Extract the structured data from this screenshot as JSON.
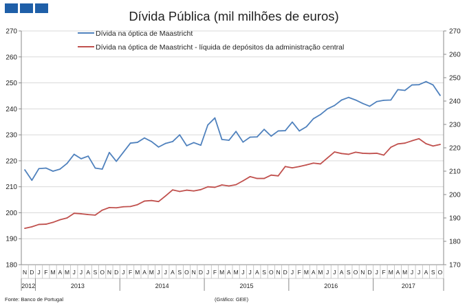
{
  "brand_color": "#1f5fa8",
  "chart_data": {
    "type": "line",
    "title": "Dívida Pública (mil milhões de euros)",
    "ylim": [
      180,
      270
    ],
    "y2lim": [
      170,
      270
    ],
    "yticks": [
      180,
      190,
      200,
      210,
      220,
      230,
      240,
      250,
      260,
      270
    ],
    "y2ticks": [
      170,
      180,
      190,
      200,
      210,
      220,
      230,
      240,
      250,
      260,
      270
    ],
    "months": [
      "N",
      "D",
      "J",
      "F",
      "M",
      "A",
      "M",
      "J",
      "J",
      "A",
      "S",
      "O",
      "N",
      "D",
      "J",
      "F",
      "M",
      "A",
      "M",
      "J",
      "J",
      "A",
      "S",
      "O",
      "N",
      "D",
      "J",
      "F",
      "M",
      "A",
      "M",
      "J",
      "J",
      "A",
      "S",
      "O",
      "N",
      "D",
      "J",
      "F",
      "M",
      "A",
      "M",
      "J",
      "J",
      "A",
      "S",
      "O",
      "N",
      "D",
      "J",
      "F",
      "M",
      "A",
      "M",
      "J",
      "J",
      "A",
      "S",
      "O"
    ],
    "years": [
      {
        "label": "2012",
        "start": 0,
        "count": 2
      },
      {
        "label": "2013",
        "start": 2,
        "count": 12
      },
      {
        "label": "2014",
        "start": 14,
        "count": 12
      },
      {
        "label": "2015",
        "start": 26,
        "count": 12
      },
      {
        "label": "2016",
        "start": 38,
        "count": 12
      },
      {
        "label": "2017",
        "start": 50,
        "count": 10
      }
    ],
    "legend_position": "top",
    "series": [
      {
        "name": "Dívida na óptica de Maastricht",
        "color": "#4f81bd",
        "values": [
          216.5,
          212.5,
          217.0,
          217.2,
          216.0,
          216.8,
          219.0,
          222.5,
          220.8,
          221.8,
          217.2,
          216.8,
          223.2,
          219.8,
          223.3,
          226.8,
          227.1,
          228.8,
          227.4,
          225.3,
          226.7,
          227.4,
          230.0,
          225.8,
          227.0,
          226.0,
          233.8,
          236.5,
          228.2,
          227.9,
          231.3,
          227.2,
          229.1,
          229.2,
          232.1,
          229.5,
          231.5,
          231.6,
          234.9,
          231.5,
          233.1,
          236.2,
          237.8,
          240.0,
          241.3,
          243.4,
          244.4,
          243.4,
          242.1,
          241.0,
          242.8,
          243.3,
          243.4,
          247.4,
          247.1,
          249.2,
          249.3,
          250.5,
          249.2,
          245.2
        ]
      },
      {
        "name": "Dívida na óptica de Maastricht - líquida de depósitos da administração central",
        "color": "#c0504d",
        "values": [
          194.0,
          194.6,
          195.5,
          195.6,
          196.3,
          197.3,
          198.0,
          199.8,
          199.6,
          199.3,
          199.1,
          201.0,
          202.0,
          201.9,
          202.3,
          202.4,
          203.1,
          204.5,
          204.7,
          204.3,
          206.5,
          208.8,
          208.2,
          208.7,
          208.4,
          208.9,
          210.0,
          209.8,
          210.7,
          210.3,
          210.8,
          212.3,
          213.9,
          213.2,
          213.2,
          214.5,
          214.2,
          217.8,
          217.3,
          217.8,
          218.4,
          219.1,
          218.8,
          221.1,
          223.4,
          222.8,
          222.5,
          223.3,
          222.9,
          222.8,
          222.9,
          222.2,
          225.2,
          226.5,
          226.8,
          227.7,
          228.5,
          226.6,
          225.7,
          226.3
        ]
      }
    ]
  },
  "footer": {
    "source": "Fonte: Banco de Portugal",
    "credit": "(Gráfico: GEE)"
  }
}
